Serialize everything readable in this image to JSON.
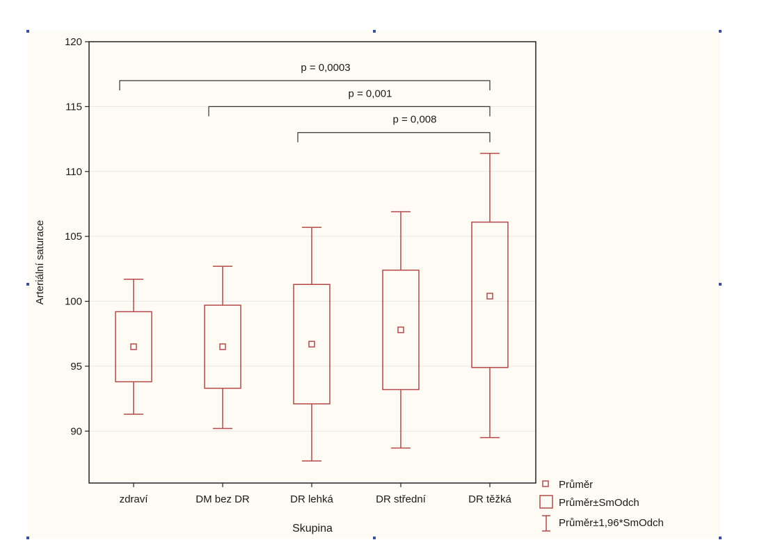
{
  "chart_data": {
    "type": "box",
    "xlabel": "Skupina",
    "ylabel": "Arteriální saturace",
    "ylim": [
      86,
      120
    ],
    "yticks": [
      90,
      95,
      100,
      105,
      110,
      115,
      120
    ],
    "grid": true,
    "categories": [
      "zdraví",
      "DM bez DR",
      "DR lehká",
      "DR střední",
      "DR těžká"
    ],
    "series": [
      {
        "name": "Průměr",
        "values": [
          96.5,
          96.5,
          96.7,
          97.8,
          100.4
        ]
      },
      {
        "name": "Průměr±SmOdch",
        "low": [
          93.8,
          93.3,
          92.1,
          93.2,
          94.9
        ],
        "high": [
          99.2,
          99.7,
          101.3,
          102.4,
          106.1
        ]
      },
      {
        "name": "Průměr±1,96*SmOdch",
        "low": [
          91.3,
          90.2,
          87.7,
          88.7,
          89.5
        ],
        "high": [
          101.7,
          102.7,
          105.7,
          106.9,
          111.4
        ]
      }
    ],
    "annotations": [
      {
        "from": "zdraví",
        "to": "DR těžká",
        "text": "p = 0,0003",
        "y": 117
      },
      {
        "from": "DM bez DR",
        "to": "DR těžká",
        "text": "p = 0,001",
        "y": 115
      },
      {
        "from": "DR lehká",
        "to": "DR těžká",
        "text": "p = 0,008",
        "y": 113
      },
      {
        "legend_placement": "bottom-right"
      }
    ],
    "color": "#b5474a"
  }
}
